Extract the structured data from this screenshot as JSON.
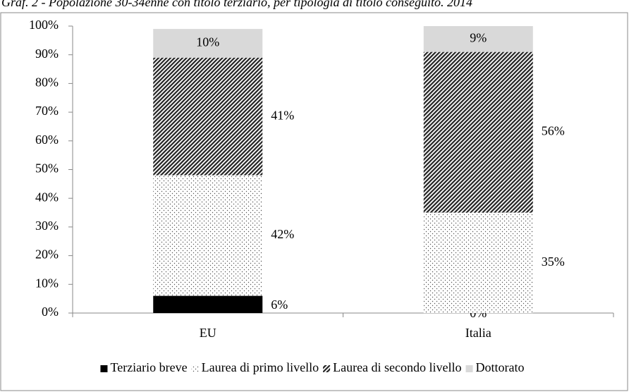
{
  "chart_data": {
    "type": "stacked_bar",
    "title": "Graf. 2 - Popolazione 30-34enne con titolo terziario, per tipologia di titolo conseguito. 2014",
    "categories": [
      "EU",
      "Italia"
    ],
    "series": [
      {
        "name": "Terziario breve",
        "color": "#000000",
        "pattern": "solid",
        "values": [
          6,
          0
        ],
        "value_labels": [
          "6%",
          "0%"
        ]
      },
      {
        "name": "Laurea di primo livello",
        "color": "#808080",
        "pattern": "dots",
        "values": [
          42,
          35
        ],
        "value_labels": [
          "42%",
          "35%"
        ]
      },
      {
        "name": "Laurea di secondo livello",
        "color": "#404040",
        "pattern": "hatch",
        "values": [
          41,
          56
        ],
        "value_labels": [
          "41%",
          "56%"
        ]
      },
      {
        "name": "Dottorato",
        "color": "#d9d9d9",
        "pattern": "solid",
        "values": [
          10,
          9
        ],
        "value_labels": [
          "10%",
          "9%"
        ]
      }
    ],
    "ylim": [
      0,
      100
    ],
    "yticks": [
      {
        "value": 0,
        "label": "0%"
      },
      {
        "value": 10,
        "label": "10%"
      },
      {
        "value": 20,
        "label": "20%"
      },
      {
        "value": 30,
        "label": "30%"
      },
      {
        "value": 40,
        "label": "40%"
      },
      {
        "value": 50,
        "label": "50%"
      },
      {
        "value": 60,
        "label": "60%"
      },
      {
        "value": 70,
        "label": "70%"
      },
      {
        "value": 80,
        "label": "80%"
      },
      {
        "value": 90,
        "label": "90%"
      },
      {
        "value": 100,
        "label": "100%"
      }
    ],
    "grid": false,
    "legend": "bottom"
  }
}
